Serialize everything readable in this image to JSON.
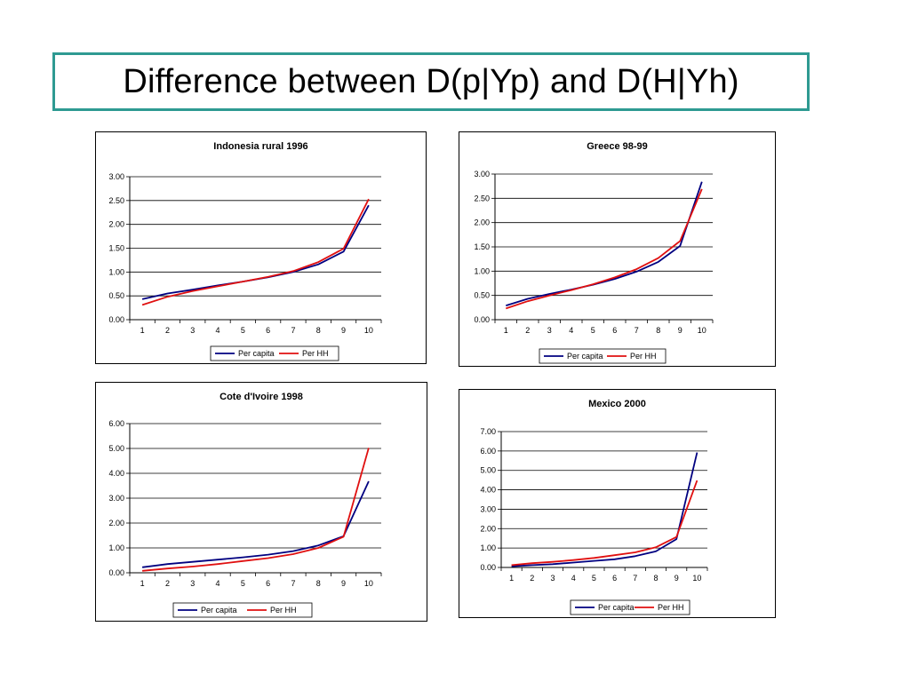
{
  "slide": {
    "title": "Difference between D(p|Yp) and D(H|Yh)"
  },
  "colors": {
    "per_capita": "#000080",
    "per_hh": "#e01010",
    "title_border": "#2e9a92"
  },
  "chart_data": [
    {
      "id": "indonesia",
      "type": "line",
      "title": "Indonesia rural 1996",
      "x": [
        1,
        2,
        3,
        4,
        5,
        6,
        7,
        8,
        9,
        10
      ],
      "ylim": [
        0,
        3
      ],
      "yticks": [
        "0.00",
        "0.50",
        "1.00",
        "1.50",
        "2.00",
        "2.50",
        "3.00"
      ],
      "grid": true,
      "legend": "bottom",
      "series": [
        {
          "name": "Per capita",
          "color": "#000080",
          "values": [
            0.43,
            0.55,
            0.63,
            0.72,
            0.8,
            0.89,
            1.0,
            1.16,
            1.43,
            2.4
          ]
        },
        {
          "name": "Per HH",
          "color": "#e01010",
          "values": [
            0.31,
            0.48,
            0.6,
            0.7,
            0.8,
            0.9,
            1.02,
            1.21,
            1.49,
            2.53
          ]
        }
      ]
    },
    {
      "id": "greece",
      "type": "line",
      "title": "Greece 98-99",
      "x": [
        1,
        2,
        3,
        4,
        5,
        6,
        7,
        8,
        9,
        10
      ],
      "ylim": [
        0,
        3
      ],
      "yticks": [
        "0.00",
        "0.50",
        "1.00",
        "1.50",
        "2.00",
        "2.50",
        "3.00"
      ],
      "grid": true,
      "legend": "bottom",
      "series": [
        {
          "name": "Per capita",
          "color": "#000080",
          "values": [
            0.29,
            0.43,
            0.53,
            0.62,
            0.72,
            0.84,
            0.99,
            1.19,
            1.52,
            2.84
          ]
        },
        {
          "name": "Per HH",
          "color": "#e01010",
          "values": [
            0.23,
            0.38,
            0.5,
            0.61,
            0.73,
            0.87,
            1.04,
            1.27,
            1.62,
            2.69
          ]
        }
      ]
    },
    {
      "id": "cote-divoire",
      "type": "line",
      "title": "Cote d'Ivoire 1998",
      "x": [
        1,
        2,
        3,
        4,
        5,
        6,
        7,
        8,
        9,
        10
      ],
      "ylim": [
        0,
        6
      ],
      "yticks": [
        "0.00",
        "1.00",
        "2.00",
        "3.00",
        "4.00",
        "5.00",
        "6.00"
      ],
      "grid": true,
      "legend": "bottom",
      "series": [
        {
          "name": "Per capita",
          "color": "#000080",
          "values": [
            0.22,
            0.35,
            0.44,
            0.53,
            0.62,
            0.73,
            0.87,
            1.1,
            1.47,
            3.68
          ]
        },
        {
          "name": "Per HH",
          "color": "#e01010",
          "values": [
            0.08,
            0.17,
            0.25,
            0.35,
            0.47,
            0.59,
            0.75,
            1.0,
            1.45,
            5.02
          ]
        }
      ]
    },
    {
      "id": "mexico",
      "type": "line",
      "title": "Mexico 2000",
      "x": [
        1,
        2,
        3,
        4,
        5,
        6,
        7,
        8,
        9,
        10
      ],
      "ylim": [
        0,
        7
      ],
      "yticks": [
        "0.00",
        "1.00",
        "2.00",
        "3.00",
        "4.00",
        "5.00",
        "6.00",
        "7.00"
      ],
      "grid": true,
      "legend": "bottom",
      "series": [
        {
          "name": "Per capita",
          "color": "#000080",
          "values": [
            0.06,
            0.12,
            0.17,
            0.25,
            0.34,
            0.42,
            0.58,
            0.83,
            1.46,
            5.92
          ]
        },
        {
          "name": "Per HH",
          "color": "#e01010",
          "values": [
            0.12,
            0.22,
            0.29,
            0.38,
            0.49,
            0.63,
            0.78,
            1.04,
            1.57,
            4.48
          ]
        }
      ]
    }
  ]
}
